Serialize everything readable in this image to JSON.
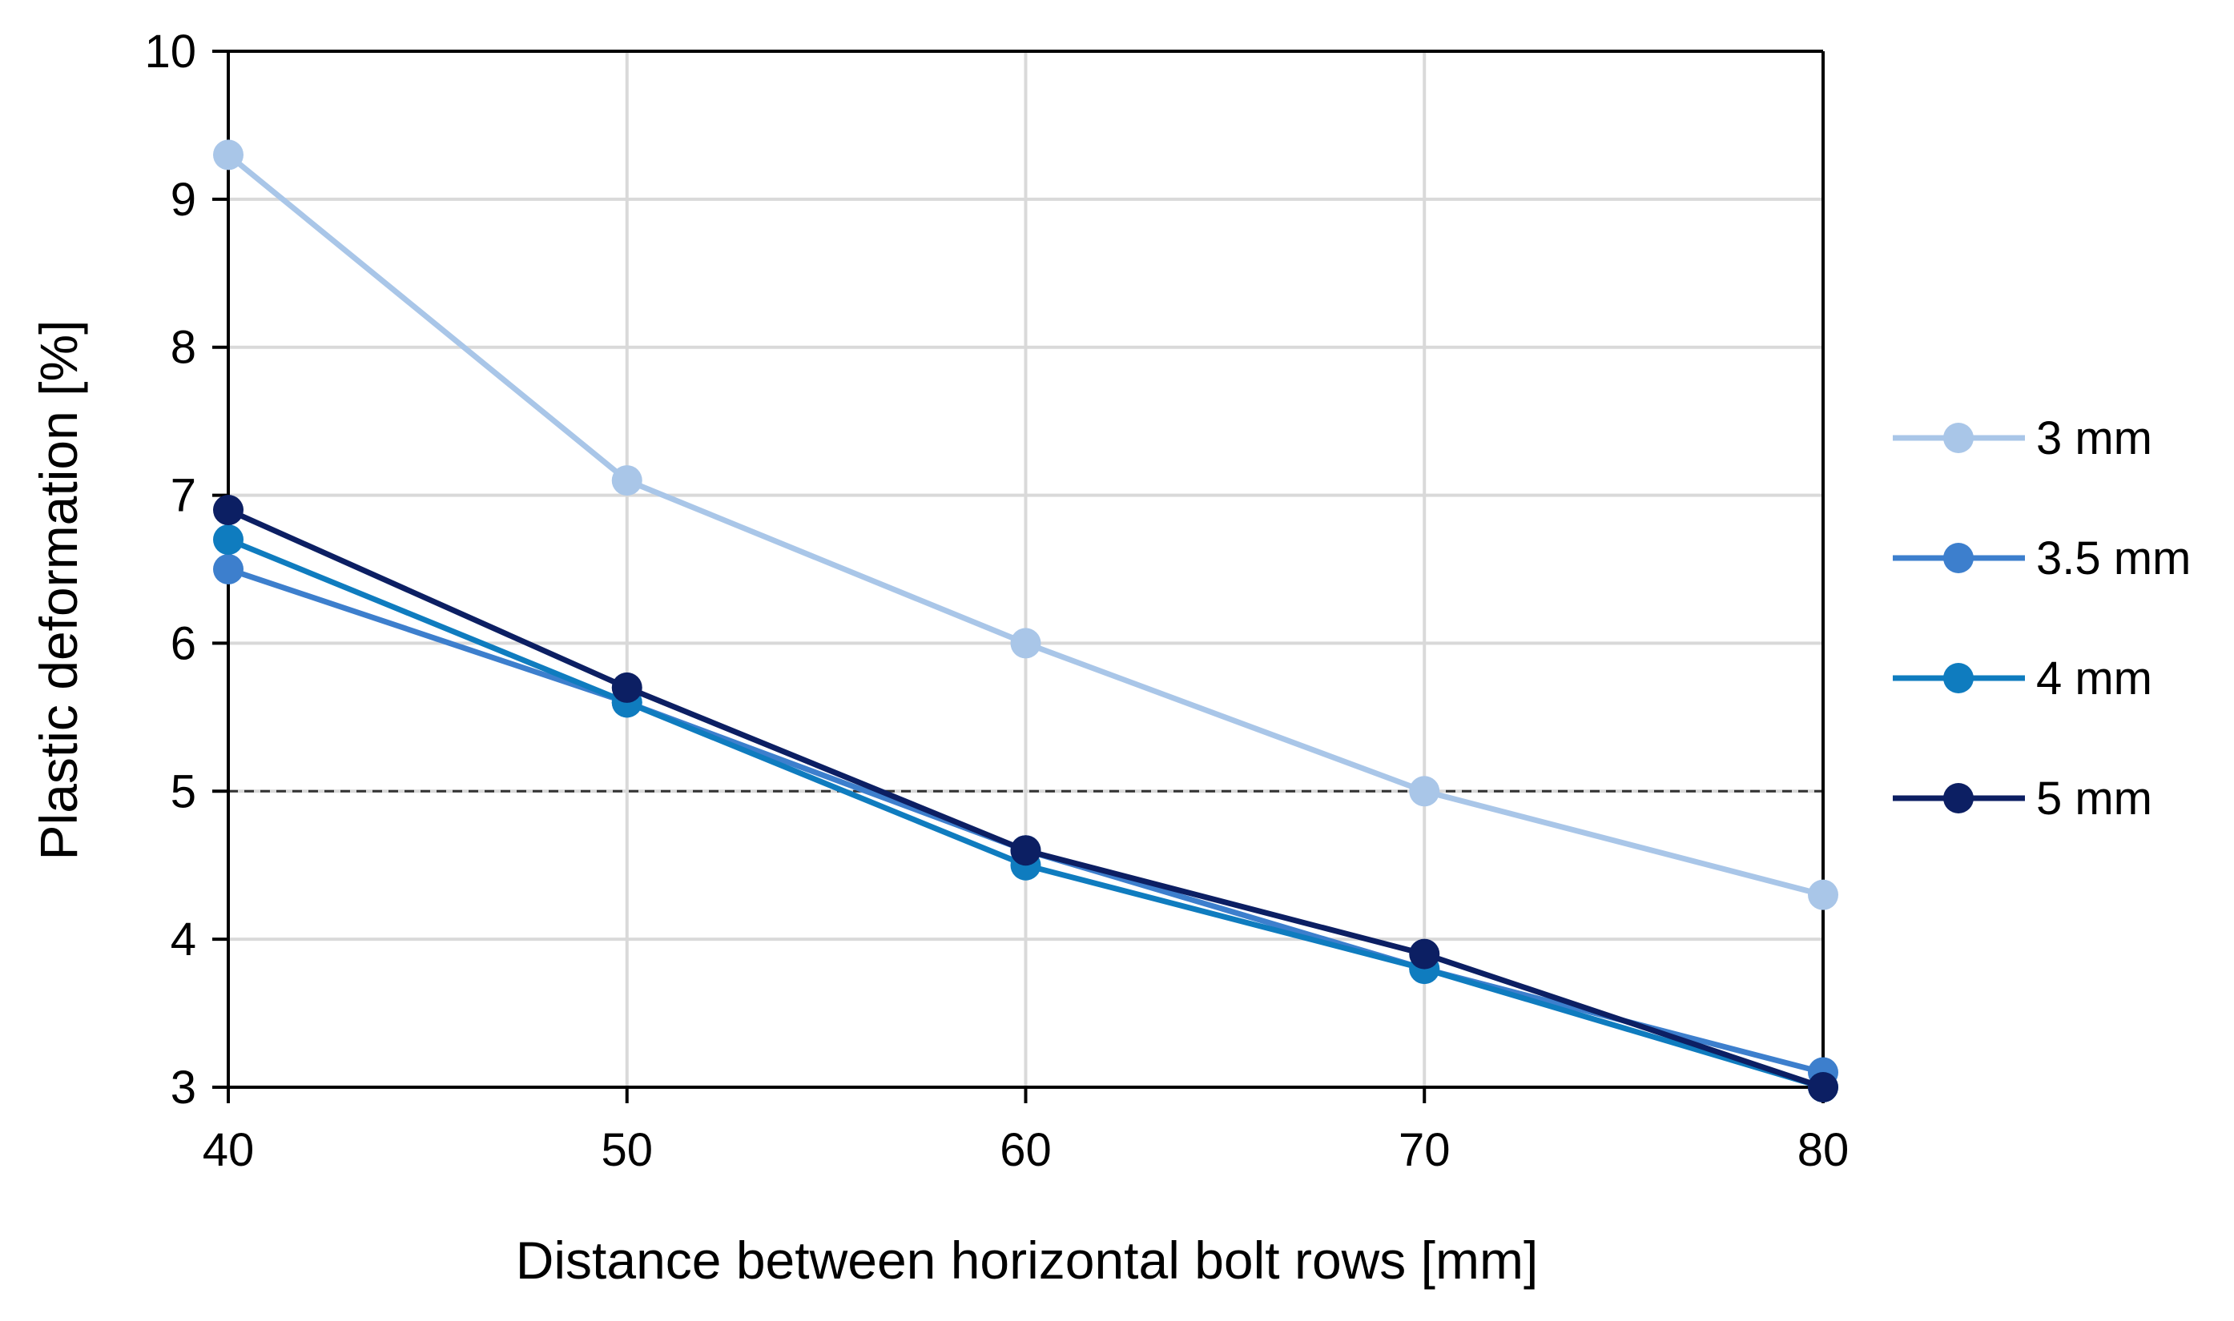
{
  "chart_data": {
    "type": "line",
    "title": "",
    "xlabel": "Distance between horizontal bolt rows [mm]",
    "ylabel": "Plastic deformation [%]",
    "x": [
      40,
      50,
      60,
      70,
      80
    ],
    "x_ticks": [
      "40",
      "50",
      "60",
      "70",
      "80"
    ],
    "y_ticks": [
      "3",
      "4",
      "5",
      "6",
      "7",
      "8",
      "9",
      "10"
    ],
    "xlim": [
      40,
      80
    ],
    "ylim": [
      3,
      10
    ],
    "grid": true,
    "reference_line": {
      "y": 5,
      "style": "dashed"
    },
    "legend_position": "right",
    "series": [
      {
        "name": "3 mm",
        "color": "#a9c6e8",
        "values": [
          9.3,
          7.1,
          6.0,
          5.0,
          4.3
        ]
      },
      {
        "name": "3.5 mm",
        "color": "#3d7fcd",
        "values": [
          6.5,
          5.6,
          4.6,
          3.8,
          3.1
        ]
      },
      {
        "name": "4 mm",
        "color": "#0f7cbf",
        "values": [
          6.7,
          5.6,
          4.5,
          3.8,
          3.0
        ]
      },
      {
        "name": "5 mm",
        "color": "#0c1f63",
        "values": [
          6.9,
          5.7,
          4.6,
          3.9,
          3.0
        ]
      }
    ]
  }
}
